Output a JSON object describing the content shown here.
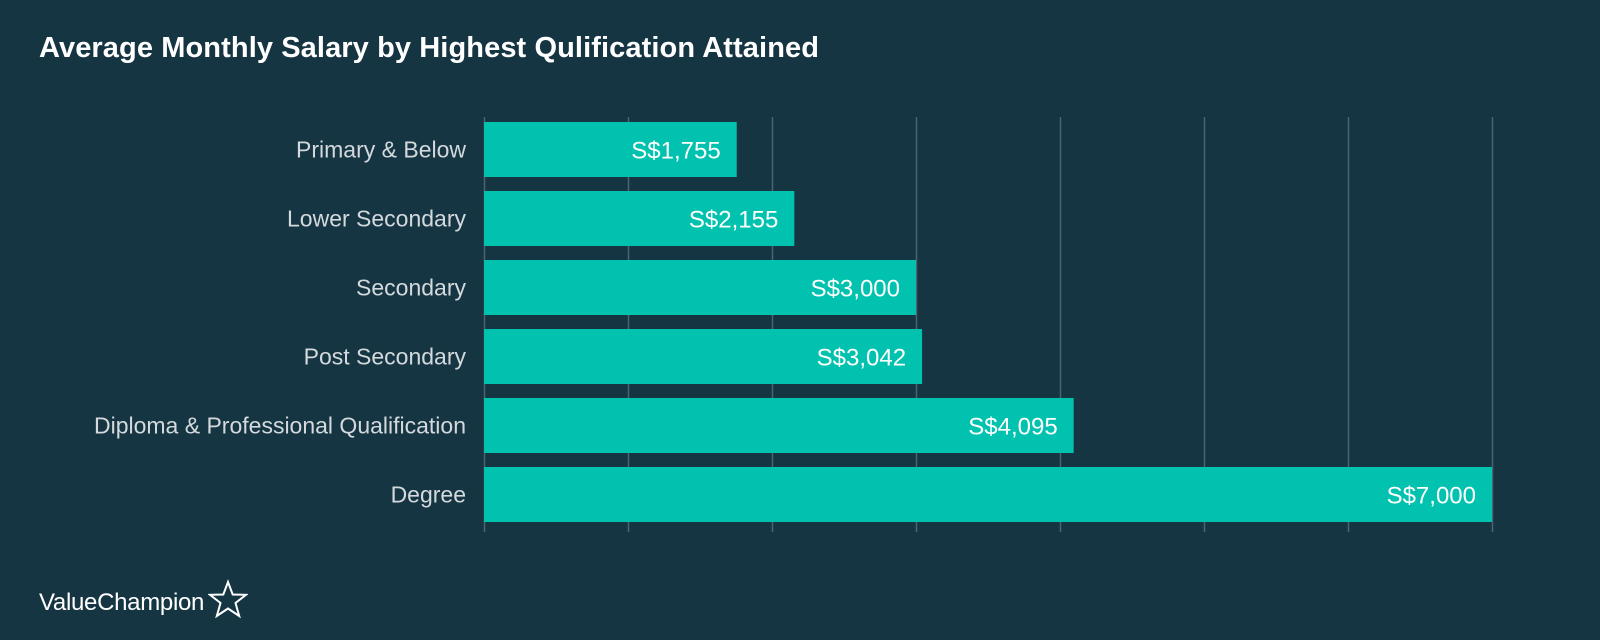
{
  "chart_data": {
    "type": "bar",
    "orientation": "horizontal",
    "title": "Average Monthly Salary by Highest Qulification Attained",
    "categories": [
      "Primary & Below",
      "Lower Secondary",
      "Secondary",
      "Post Secondary",
      "Diploma & Professional Qualification",
      "Degree"
    ],
    "values": [
      1755,
      2155,
      3000,
      3042,
      4095,
      7000
    ],
    "data_labels": [
      "S$1,755",
      "S$2,155",
      "S$3,000",
      "S$3,042",
      "S$4,095",
      "S$7,000"
    ],
    "xlim": [
      0,
      7000
    ],
    "x_gridlines": [
      0,
      1000,
      2000,
      3000,
      4000,
      5000,
      6000,
      7000
    ],
    "grid": true,
    "legend": "none"
  },
  "branding": {
    "logo_text": "ValueChampion",
    "logo_icon": "star-outline-icon"
  },
  "colors": {
    "background": "#163543",
    "bar": "#00c2af",
    "gridline": "#4a6470",
    "category_label": "#d3d9dc",
    "data_label": "#ffffff",
    "title": "#ffffff"
  }
}
